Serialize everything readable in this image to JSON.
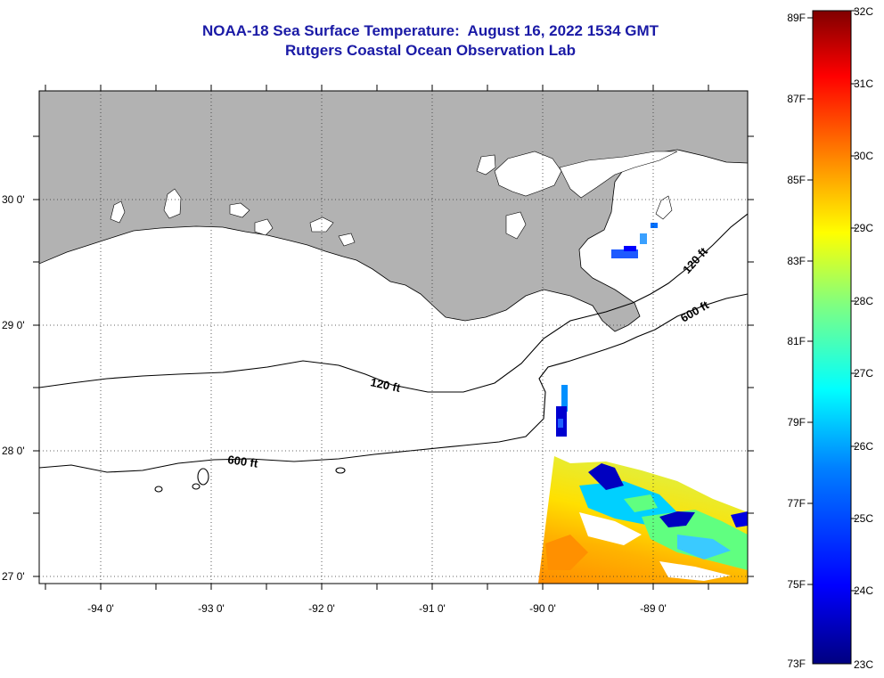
{
  "header": {
    "title": "NOAA-18 Sea Surface Temperature:  August 16, 2022 1534 GMT",
    "subtitle": "Rutgers Coastal Ocean Observation Lab"
  },
  "map": {
    "lat_labels": [
      "30 0'",
      "29 0'",
      "28 0'",
      "27 0'"
    ],
    "lon_labels": [
      "-94 0'",
      "-93 0'",
      "-92 0'",
      "-91 0'",
      "-90 0'",
      "-89 0'"
    ],
    "lat_values": [
      30,
      29,
      28,
      27
    ],
    "lon_values": [
      -94,
      -93,
      -92,
      -91,
      -90,
      -89
    ],
    "land_color": "#b2b2b2",
    "contours": [
      {
        "label": "120 ft"
      },
      {
        "label": "600 ft"
      },
      {
        "label": "120 ft"
      },
      {
        "label": "600 ft"
      }
    ]
  },
  "colorbar": {
    "f_labels": [
      "89F",
      "87F",
      "85F",
      "83F",
      "81F",
      "79F",
      "77F",
      "75F",
      "73F"
    ],
    "c_labels": [
      "32C",
      "31C",
      "30C",
      "29C",
      "28C",
      "27C",
      "26C",
      "25C",
      "24C",
      "23C"
    ],
    "colors": [
      "#000080",
      "#0000ff",
      "#0080ff",
      "#00ffff",
      "#80ff80",
      "#ffff00",
      "#ff8000",
      "#ff0000",
      "#800000"
    ]
  }
}
